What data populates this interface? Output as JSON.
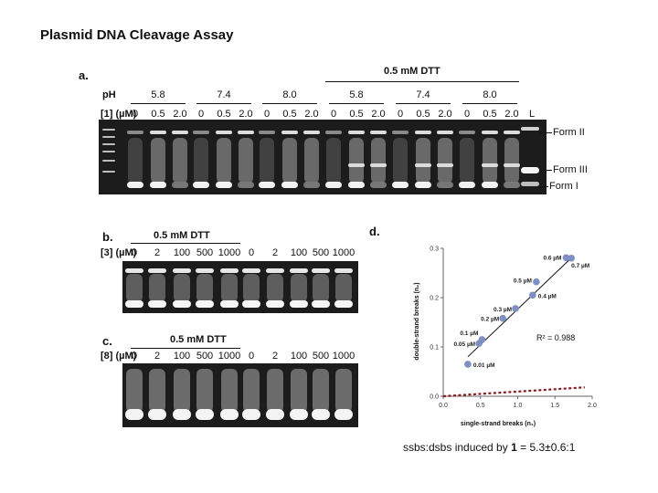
{
  "title": "Plasmid DNA Cleavage Assay",
  "panel_a": {
    "letter": "a.",
    "dtt_label": "0.5 mM DTT",
    "ph_label": "pH",
    "conc_label": "[1] (µM)",
    "ph_values": [
      "5.8",
      "7.4",
      "8.0",
      "5.8",
      "7.4",
      "8.0"
    ],
    "conc_values": [
      "0",
      "0.5",
      "2.0",
      "0",
      "0.5",
      "2.0",
      "0",
      "0.5",
      "2.0",
      "0",
      "0.5",
      "2.0",
      "0",
      "0.5",
      "2.0",
      "0",
      "0.5",
      "2.0"
    ],
    "ladder_label": "L",
    "forms": [
      "Form II",
      "Form III",
      "Form I"
    ]
  },
  "panel_b": {
    "letter": "b.",
    "dtt_label": "0.5 mM DTT",
    "conc_label": "[3] (µM)",
    "conc_values": [
      "0",
      "2",
      "100",
      "500",
      "1000",
      "0",
      "2",
      "100",
      "500",
      "1000"
    ]
  },
  "panel_c": {
    "letter": "c.",
    "dtt_label": "0.5 mM DTT",
    "conc_label": "[8] (µM)",
    "conc_values": [
      "0",
      "2",
      "100",
      "500",
      "1000",
      "0",
      "2",
      "100",
      "500",
      "1000"
    ]
  },
  "panel_d": {
    "letter": "d.",
    "r2_label": "R² = 0.988",
    "ssbs_note_prefix": "ssbs:dsbs induced by ",
    "ssbs_note_bold": "1",
    "ssbs_note_suffix": " = 5.3±0.6:1"
  },
  "chart_data": {
    "type": "scatter",
    "xlabel": "single-strand breaks (n₁)",
    "ylabel": "double-strand breaks (n₂)",
    "xlim": [
      0,
      2.0
    ],
    "ylim": [
      0,
      0.3
    ],
    "x_ticks": [
      "0.0",
      "0.5",
      "1.0",
      "1.5",
      "2.0"
    ],
    "y_ticks": [
      "0.0",
      "0.1",
      "0.2",
      "0.3"
    ],
    "points": [
      {
        "x": 0.33,
        "y": 0.065,
        "label": "0.01 µM"
      },
      {
        "x": 0.48,
        "y": 0.107,
        "label": "0.05 µM"
      },
      {
        "x": 0.52,
        "y": 0.115,
        "label": "0.1 µM"
      },
      {
        "x": 0.8,
        "y": 0.158,
        "label": "0.2 µM"
      },
      {
        "x": 0.97,
        "y": 0.178,
        "label": "0.3 µM"
      },
      {
        "x": 1.2,
        "y": 0.205,
        "label": "0.4 µM"
      },
      {
        "x": 1.25,
        "y": 0.232,
        "label": "0.5 µM"
      },
      {
        "x": 1.65,
        "y": 0.281,
        "label": "0.6 µM"
      },
      {
        "x": 1.72,
        "y": 0.28,
        "label": "0.7 µM"
      }
    ],
    "fit_line": {
      "x": [
        0.33,
        1.75
      ],
      "y": [
        0.08,
        0.285
      ]
    },
    "reference_line": {
      "x": [
        0,
        1.9
      ],
      "y": [
        0,
        0.018
      ]
    },
    "annotation": "R² = 0.988"
  }
}
